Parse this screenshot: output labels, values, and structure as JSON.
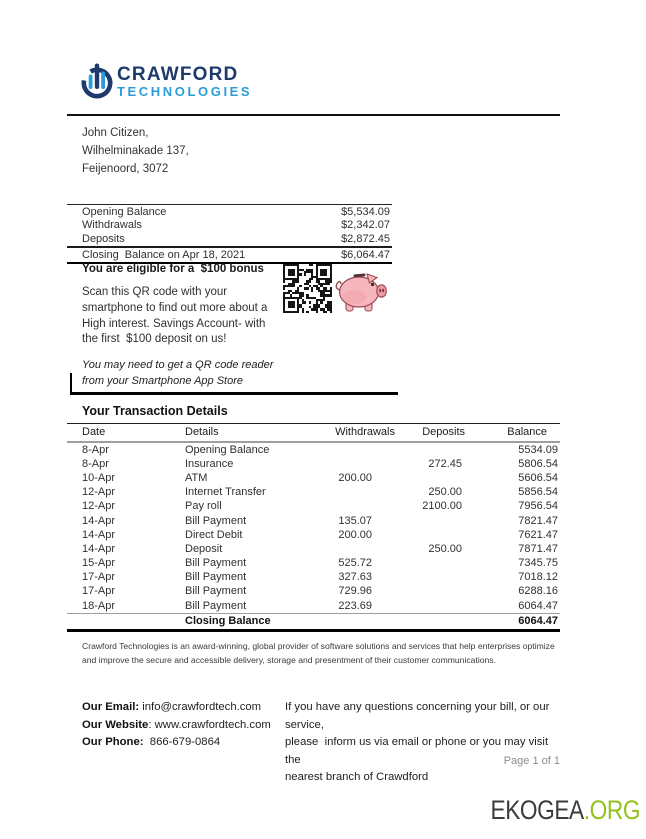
{
  "colors": {
    "brand_navy": "#1e3a6d",
    "brand_cyan": "#2b9cd8",
    "ekogea_green": "#95c11f",
    "piggy_pink": "#f6b6bd",
    "page_background": "#ffffff"
  },
  "logo": {
    "title": "CRAWFORD",
    "subtitle": "TECHNOLOGIES",
    "icon": "crawford-circle-bars-icon"
  },
  "recipient": {
    "lines": [
      "John Citizen,",
      "Wilhelminakade 137,",
      "Feijenoord, 3072"
    ]
  },
  "summary": {
    "rows": [
      {
        "label": "Opening Balance",
        "value": "$5,534.09"
      },
      {
        "label": "Withdrawals",
        "value": "$2,342.07"
      },
      {
        "label": "Deposits",
        "value": "$2,872.45"
      }
    ],
    "closing": {
      "label": "Closing  Balance on Apr 18, 2021",
      "value": "$6,064.47"
    }
  },
  "bonus": {
    "heading": "You are eligible for a  $100 bonus",
    "body_lines": [
      "Scan this QR code with your",
      "smartphone to find out more about a",
      "High interest. Savings Account- with",
      "the first  $100 deposit on us!"
    ],
    "note_lines": [
      "You may need to get a QR code reader",
      "from your Smartphone App Store"
    ],
    "qr_icon": "qr-code",
    "piggy_icon": "piggy-bank"
  },
  "transactions": {
    "section_title": "Your Transaction Details",
    "headers": [
      "Date",
      "Details",
      "Withdrawals",
      "Deposits",
      "Balance"
    ],
    "rows": [
      {
        "date": "8-Apr",
        "details": "Opening Balance",
        "withdrawals": "",
        "deposits": "",
        "balance": "5534.09"
      },
      {
        "date": "8-Apr",
        "details": "Insurance",
        "withdrawals": "",
        "deposits": "272.45",
        "balance": "5806.54"
      },
      {
        "date": "10-Apr",
        "details": "ATM",
        "withdrawals": "200.00",
        "deposits": "",
        "balance": "5606.54"
      },
      {
        "date": "12-Apr",
        "details": "Internet Transfer",
        "withdrawals": "",
        "deposits": "250.00",
        "balance": "5856.54"
      },
      {
        "date": "12-Apr",
        "details": "Pay roll",
        "withdrawals": "",
        "deposits": "2100.00",
        "balance": "7956.54"
      },
      {
        "date": "14-Apr",
        "details": "Bill Payment",
        "withdrawals": "135.07",
        "deposits": "",
        "balance": "7821.47"
      },
      {
        "date": "14-Apr",
        "details": "Direct Debit",
        "withdrawals": "200.00",
        "deposits": "",
        "balance": "7621.47"
      },
      {
        "date": "14-Apr",
        "details": "Deposit",
        "withdrawals": "",
        "deposits": "250.00",
        "balance": "7871.47"
      },
      {
        "date": "15-Apr",
        "details": "Bill Payment",
        "withdrawals": "525.72",
        "deposits": "",
        "balance": "7345.75"
      },
      {
        "date": "17-Apr",
        "details": "Bill Payment",
        "withdrawals": "327.63",
        "deposits": "",
        "balance": "7018.12"
      },
      {
        "date": "17-Apr",
        "details": "Bill Payment",
        "withdrawals": "729.96",
        "deposits": "",
        "balance": "6288.16"
      },
      {
        "date": "18-Apr",
        "details": "Bill Payment",
        "withdrawals": "223.69",
        "deposits": "",
        "balance": "6064.47"
      }
    ],
    "closing": {
      "label": "Closing Balance",
      "value": "6064.47"
    }
  },
  "fine_print": {
    "lines": [
      "Crawford Technologies is an award-winning, global provider of software solutions and services that help enterprises optimize",
      "and improve the secure and accessible delivery, storage and presentment of their customer communications."
    ]
  },
  "contact": {
    "email_label": "Our Email:",
    "email_value": " info@crawfordtech.com",
    "website_label": "Our Website",
    "website_value": ": www.crawfordtech.com",
    "phone_label": "Our Phone:",
    "phone_value": "  866-679-0864",
    "support_lines": [
      "If you have any questions concerning your bill, or our service,",
      "please  inform us via email or phone or you may visit the",
      "nearest branch of Crawdford"
    ]
  },
  "footer": {
    "page_indicator": "Page 1 of 1"
  },
  "watermark": {
    "brand": "EKOGEA",
    "tld": ".ORG"
  }
}
